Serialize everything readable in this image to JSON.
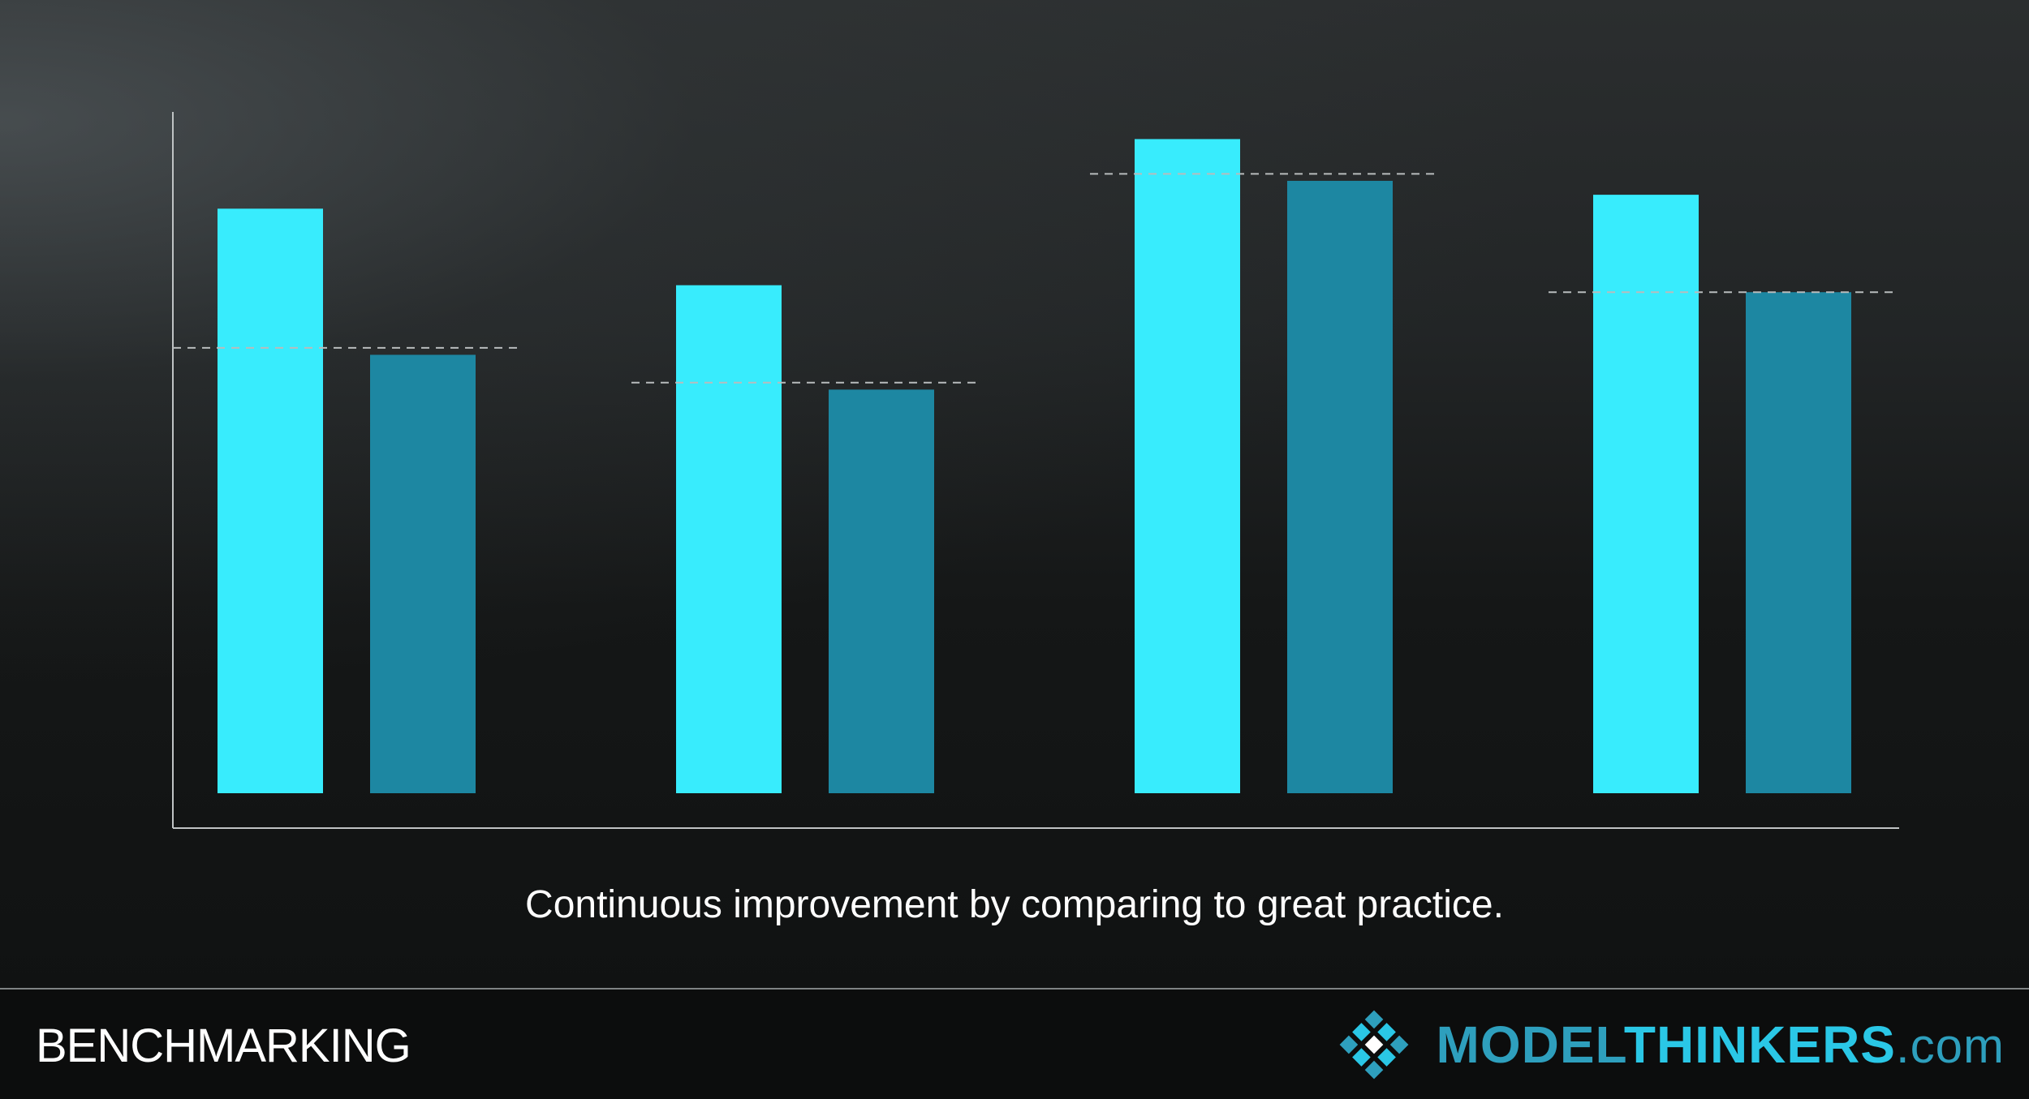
{
  "chart_data": {
    "type": "bar",
    "title": "",
    "xlabel": "",
    "ylabel": "",
    "ylim": [
      0,
      100
    ],
    "grid": false,
    "legend": "none",
    "categories": [
      "",
      "",
      "",
      ""
    ],
    "series": [
      {
        "values": [
          84,
          73,
          94,
          86
        ],
        "color": "#38ecfd"
      },
      {
        "values": [
          63,
          58,
          88,
          72
        ],
        "color": "#1d87a2"
      }
    ],
    "benchmarks": [
      64,
      59,
      89,
      72
    ],
    "axis_color": "#bfc3c4",
    "benchmark_color": "#b8bcbd"
  },
  "caption": "Continuous improvement by comparing to great practice.",
  "footer": {
    "title": "BENCHMARKING",
    "brand": {
      "model": "MODEL",
      "thinkers": "THINKERS",
      "dotcom": ".com",
      "logo_icon": "diamond-grid-logo-icon"
    }
  }
}
